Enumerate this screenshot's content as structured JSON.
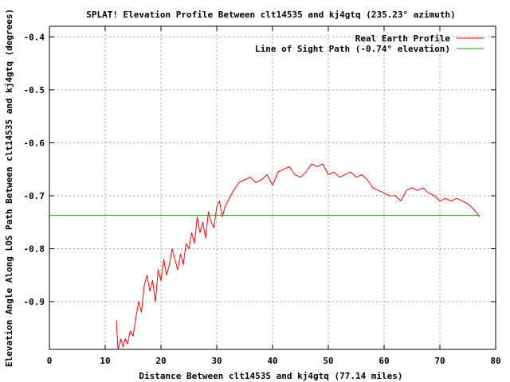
{
  "chart_data": {
    "type": "line",
    "title": "SPLAT! Elevation Profile Between clt14535 and kj4gtq (235.23° azimuth)",
    "xlabel": "Distance Between clt14535 and kj4gtq (77.14 miles)",
    "ylabel": "Elevation Angle Along LOS Path Between clt14535 and kj4gtq (degrees)",
    "xlim": [
      0,
      80
    ],
    "ylim": [
      -0.99,
      -0.38
    ],
    "x_ticks": [
      0,
      10,
      20,
      30,
      40,
      50,
      60,
      70,
      80
    ],
    "x_tick_labels": [
      "0",
      "10",
      "20",
      "30",
      "40",
      "50",
      "60",
      "70",
      "80"
    ],
    "y_ticks": [
      -0.9,
      -0.8,
      -0.7,
      -0.6,
      -0.5,
      -0.4
    ],
    "y_tick_labels": [
      "-0.9",
      "-0.8",
      "-0.7",
      "-0.6",
      "-0.5",
      "-0.4"
    ],
    "grid": true,
    "legend_position": "top-right",
    "series": [
      {
        "name": "Real Earth Profile",
        "color": "#ff0000",
        "x": [
          12.0,
          12.3,
          12.8,
          13.2,
          13.6,
          14.0,
          14.5,
          15.0,
          15.5,
          16.0,
          16.5,
          17.0,
          17.5,
          18.0,
          18.5,
          19.0,
          19.5,
          20.0,
          20.5,
          21.0,
          21.5,
          22.0,
          22.5,
          23.0,
          23.5,
          24.0,
          24.5,
          25.0,
          25.5,
          26.0,
          26.5,
          27.0,
          27.5,
          28.0,
          28.5,
          29.0,
          29.5,
          30.0,
          30.5,
          31.0,
          31.5,
          32.0,
          33.0,
          34.0,
          35.0,
          36.0,
          37.0,
          38.0,
          39.0,
          40.0,
          41.0,
          42.0,
          43.0,
          44.0,
          45.0,
          46.0,
          47.0,
          48.0,
          49.0,
          50.0,
          51.0,
          52.0,
          53.0,
          54.0,
          55.0,
          56.0,
          57.0,
          58.0,
          59.0,
          60.0,
          61.0,
          62.0,
          63.0,
          64.0,
          65.0,
          66.0,
          67.0,
          68.0,
          69.0,
          70.0,
          71.0,
          72.0,
          73.0,
          74.0,
          75.0,
          76.0,
          77.14
        ],
        "values": [
          -0.935,
          -0.99,
          -0.97,
          -0.985,
          -0.97,
          -0.98,
          -0.955,
          -0.965,
          -0.93,
          -0.9,
          -0.92,
          -0.87,
          -0.85,
          -0.88,
          -0.86,
          -0.9,
          -0.84,
          -0.86,
          -0.82,
          -0.85,
          -0.83,
          -0.8,
          -0.82,
          -0.84,
          -0.81,
          -0.83,
          -0.79,
          -0.8,
          -0.77,
          -0.79,
          -0.74,
          -0.77,
          -0.75,
          -0.78,
          -0.73,
          -0.75,
          -0.76,
          -0.72,
          -0.71,
          -0.74,
          -0.72,
          -0.71,
          -0.69,
          -0.675,
          -0.67,
          -0.665,
          -0.675,
          -0.67,
          -0.66,
          -0.68,
          -0.655,
          -0.65,
          -0.645,
          -0.66,
          -0.665,
          -0.655,
          -0.64,
          -0.645,
          -0.64,
          -0.66,
          -0.655,
          -0.665,
          -0.66,
          -0.655,
          -0.665,
          -0.66,
          -0.67,
          -0.685,
          -0.69,
          -0.695,
          -0.7,
          -0.7,
          -0.71,
          -0.69,
          -0.685,
          -0.69,
          -0.685,
          -0.695,
          -0.7,
          -0.71,
          -0.705,
          -0.71,
          -0.705,
          -0.71,
          -0.715,
          -0.725,
          -0.74
        ]
      },
      {
        "name": "Line of Sight Path (-0.74° elevation)",
        "color": "#00a000",
        "x": [
          0,
          77.14
        ],
        "values": [
          -0.737,
          -0.737
        ]
      }
    ]
  }
}
